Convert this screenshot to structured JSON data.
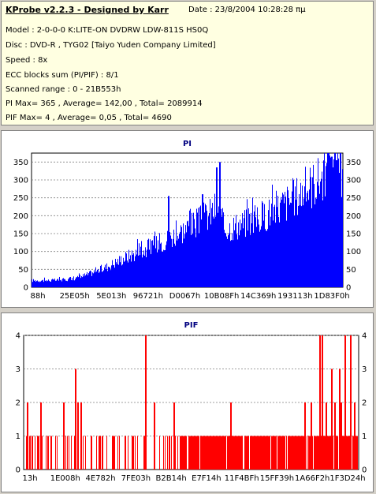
{
  "info": {
    "title": "KProbe v2.2.3 - Designed by Karr",
    "date": "Date : 23/8/2004 10:28:28 πμ",
    "lines": [
      "Model : 2-0-0-0 K:LITE-ON DVDRW LDW-811S   HS0Q",
      "Disc : DVD-R , TYG02 [Taiyo Yuden Company Limited]",
      "Speed : 8x",
      "ECC blocks sum (PI/PIF) : 8/1",
      "Scanned range : 0 - 21B553h",
      "PI Max= 365 , Average= 142,00 , Total= 2089914",
      "PIF Max= 4 , Average= 0,05 , Total= 4690"
    ]
  },
  "chart_data": [
    {
      "type": "bar",
      "title": "PI",
      "color": "#0000ff",
      "ylim": [
        0,
        375
      ],
      "yticks": [
        0,
        50,
        100,
        150,
        200,
        250,
        300,
        350
      ],
      "xticks": [
        "88h",
        "25E05h",
        "5E013h",
        "96721h",
        "D0067h",
        "10B08Fh",
        "14C369h",
        "193113h",
        "1D83F0h"
      ],
      "grid": true,
      "profile": [
        [
          0,
          20
        ],
        [
          5,
          20
        ],
        [
          10,
          22
        ],
        [
          14,
          26
        ],
        [
          18,
          38
        ],
        [
          24,
          60
        ],
        [
          30,
          88
        ],
        [
          36,
          110
        ],
        [
          42,
          135
        ],
        [
          48,
          165
        ],
        [
          54,
          195
        ],
        [
          58,
          222
        ],
        [
          60,
          245
        ],
        [
          61,
          200
        ],
        [
          62,
          175
        ],
        [
          64,
          178
        ],
        [
          68,
          188
        ],
        [
          72,
          200
        ],
        [
          76,
          218
        ],
        [
          80,
          240
        ],
        [
          84,
          262
        ],
        [
          88,
          290
        ],
        [
          92,
          318
        ],
        [
          96,
          345
        ],
        [
          100,
          345
        ]
      ],
      "spikes": [
        [
          59.5,
          335
        ],
        [
          60.5,
          350
        ],
        [
          44,
          255
        ],
        [
          55,
          260
        ],
        [
          96.5,
          365
        ],
        [
          98,
          355
        ]
      ]
    },
    {
      "type": "bar",
      "title": "PIF",
      "color": "#ff0000",
      "ylim": [
        0,
        4
      ],
      "yticks": [
        0,
        1,
        2,
        3,
        4
      ],
      "xticks": [
        "13h",
        "1E008h",
        "4E782h",
        "7FE03h",
        "B2B14h",
        "E7F14h",
        "11F4BFh",
        "15FF39h",
        "1A66F2h",
        "1F3D24h"
      ],
      "grid": true,
      "spikes": [
        [
          1,
          2
        ],
        [
          15.4,
          3
        ],
        [
          36.5,
          4
        ],
        [
          88.5,
          4
        ],
        [
          89.2,
          4
        ],
        [
          96.2,
          4
        ],
        [
          97.8,
          4
        ],
        [
          92,
          3
        ],
        [
          94.5,
          3
        ],
        [
          5,
          2
        ],
        [
          16.2,
          2
        ],
        [
          17,
          2
        ],
        [
          12,
          2
        ],
        [
          39,
          2
        ],
        [
          45,
          2
        ],
        [
          62,
          2
        ],
        [
          84,
          2
        ],
        [
          86,
          2
        ],
        [
          90.5,
          2
        ],
        [
          93,
          2
        ],
        [
          95,
          2
        ],
        [
          99,
          2
        ]
      ]
    }
  ]
}
